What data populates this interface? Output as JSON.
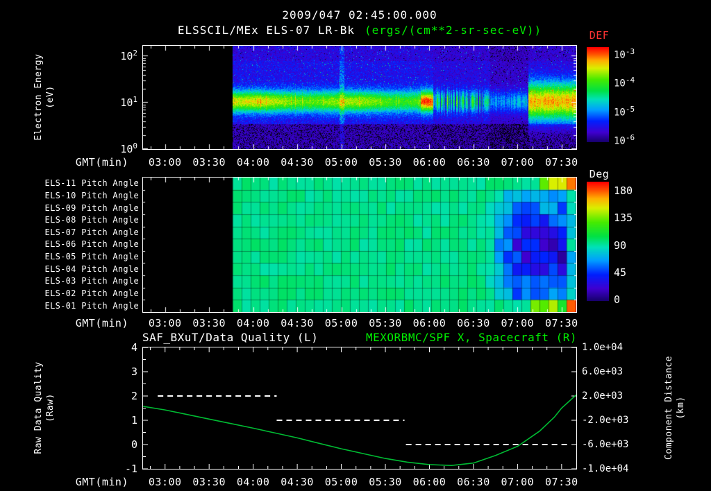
{
  "header": {
    "timestamp": "2009/047 02:45:00.000",
    "source": "ELSSCIL/MEx ELS-07 LR-Bk",
    "units": "(ergs/(cm**2-sr-sec-eV))"
  },
  "xaxis": {
    "label": "GMT(min)",
    "start": "02:45",
    "end": "07:40",
    "ticks": [
      "03:00",
      "03:30",
      "04:00",
      "04:30",
      "05:00",
      "05:30",
      "06:00",
      "06:30",
      "07:00",
      "07:30"
    ]
  },
  "spectrogram": {
    "ylabel": [
      "Electron Energy",
      "(eV)"
    ],
    "yticks": [
      "10^2",
      "10^1",
      "10^0"
    ],
    "colorbar_title": "DEF",
    "colorbar_ticks": [
      "10^-3",
      "10^-4",
      "10^-5",
      "10^-6"
    ]
  },
  "pitch": {
    "row_labels": [
      "ELS-11 Pitch Angle",
      "ELS-10 Pitch Angle",
      "ELS-09 Pitch Angle",
      "ELS-08 Pitch Angle",
      "ELS-07 Pitch Angle",
      "ELS-06 Pitch Angle",
      "ELS-05 Pitch Angle",
      "ELS-04 Pitch Angle",
      "ELS-03 Pitch Angle",
      "ELS-02 Pitch Angle",
      "ELS-01 Pitch Angle"
    ],
    "colorbar_title": "Deg",
    "colorbar_ticks": [
      "180",
      "135",
      "90",
      "45",
      "0"
    ]
  },
  "timeseries": {
    "title_left": "SAF_BXuT/Data Quality (L)",
    "title_right": "MEXORBMC/SPF X, Spacecraft (R)",
    "ylabel_left": [
      "Raw Data Quality",
      "(Raw)"
    ],
    "ylabel_right": [
      "Component Distance",
      "(km)"
    ],
    "yticks_left": [
      "4",
      "3",
      "2",
      "1",
      "0",
      "-1"
    ],
    "yticks_right": [
      "1.0e+04",
      "6.0e+03",
      "2.0e+03",
      "-2.0e+03",
      "-6.0e+03",
      "-1.0e+04"
    ]
  },
  "colors": {
    "text": "#ffffff",
    "green_text": "#00ee00",
    "red_text": "#ff3333",
    "spacecraft_line": "#00bb33",
    "quality_line": "#ffffff"
  },
  "chart_data": [
    {
      "type": "heatmap",
      "name": "electron-energy-spectrogram",
      "title": "ELSSCIL/MEx ELS-07 LR-Bk",
      "value_units": "ergs/(cm**2-sr-sec-eV)",
      "xlabel": "GMT(min)",
      "x_start": "02:45",
      "x_end": "07:40",
      "x_ticks": [
        "03:00",
        "03:30",
        "04:00",
        "04:30",
        "05:00",
        "05:30",
        "06:00",
        "06:30",
        "07:00",
        "07:30"
      ],
      "ylabel": "Electron Energy (eV)",
      "y_scale": "log",
      "y_ticks_ev": [
        1,
        10,
        100
      ],
      "y_max_ev": 165,
      "color_scale": {
        "label": "DEF",
        "min": 1e-06,
        "max": 0.001,
        "ticks": [
          0.001,
          0.0001,
          1e-05,
          1e-06
        ],
        "palette": "rainbow"
      },
      "data_start": "03:46",
      "features": [
        "no data (black) before 03:46",
        "intense band ~6-20 eV near 1e-4 (green, yellow flecks) across interval",
        "diffuse ~1e-5 blue background from 25 to 150 eV",
        "near-background violet/black below 4 eV",
        "bright burst near 06:00, dropouts and gaps 06:04-06:41",
        "dim patchy flux 06:41-07:07",
        "band broadens and brightens 07:07-07:40",
        "narrow high-energy cyan streak near 05:00"
      ]
    },
    {
      "type": "heatmap",
      "name": "pitch-angle-panels",
      "rows": [
        "ELS-11",
        "ELS-10",
        "ELS-09",
        "ELS-08",
        "ELS-07",
        "ELS-06",
        "ELS-05",
        "ELS-04",
        "ELS-03",
        "ELS-02",
        "ELS-01"
      ],
      "row_label_suffix": " Pitch Angle",
      "xlabel": "GMT(min)",
      "x_start": "02:45",
      "x_end": "07:40",
      "color_scale": {
        "label": "Deg",
        "min": 0,
        "max": 180,
        "ticks": [
          180,
          135,
          90,
          45,
          0
        ],
        "palette": "rainbow"
      },
      "data_start": "03:46",
      "dominant_value_deg": 90,
      "features": [
        "uniform ~90 deg (green) with dark cell grid from 03:46 to ~06:50 on all anodes",
        "pitch angles drop to ~30-60 deg (blue) ~06:55-07:35 on ELS-02 through ELS-10",
        "ELS-11 rises to ~135-180 deg (yellow to red) after ~07:15",
        "ELS-01 mixed 100-180 deg (yellow/orange/red) patches after ~07:00",
        "rightmost column returns to ~60-90 deg (cyan/green)"
      ]
    },
    {
      "type": "line",
      "name": "quality-and-spacecraft-position",
      "title_left": "SAF_BXuT/Data Quality (L)",
      "title_right": "MEXORBMC/SPF X, Spacecraft (R)",
      "xlabel": "GMT(min)",
      "ylabel_left": "Raw Data Quality (Raw)",
      "ylabel_right": "Component Distance (km)",
      "ylim_left": [
        -1,
        4
      ],
      "ylim_right": [
        -10000,
        10000
      ],
      "yticks_left": [
        4,
        3,
        2,
        1,
        0,
        -1
      ],
      "yticks_right": [
        10000,
        6000,
        2000,
        -2000,
        -6000,
        -10000
      ],
      "series": [
        {
          "name": "SAF_BXuT/Data Quality",
          "axis": "left",
          "style": "dashed",
          "color": "#ffffff",
          "steps": [
            {
              "value": 2,
              "from": "02:55",
              "to": "04:16"
            },
            {
              "value": 1,
              "from": "04:16",
              "to": "05:43"
            },
            {
              "value": 0,
              "from": "05:44",
              "to": "07:34"
            }
          ]
        },
        {
          "name": "MEXORBMC/SPF X Spacecraft",
          "axis": "right",
          "style": "solid",
          "color": "#00bb33",
          "points": [
            {
              "t": "02:45",
              "km": 300
            },
            {
              "t": "03:00",
              "km": -300
            },
            {
              "t": "03:15",
              "km": -1050
            },
            {
              "t": "03:30",
              "km": -1800
            },
            {
              "t": "03:45",
              "km": -2550
            },
            {
              "t": "04:00",
              "km": -3300
            },
            {
              "t": "04:15",
              "km": -4100
            },
            {
              "t": "04:30",
              "km": -4900
            },
            {
              "t": "04:45",
              "km": -5800
            },
            {
              "t": "05:00",
              "km": -6700
            },
            {
              "t": "05:15",
              "km": -7500
            },
            {
              "t": "05:30",
              "km": -8300
            },
            {
              "t": "05:45",
              "km": -8900
            },
            {
              "t": "06:00",
              "km": -9300
            },
            {
              "t": "06:15",
              "km": -9450
            },
            {
              "t": "06:30",
              "km": -9050
            },
            {
              "t": "06:45",
              "km": -7800
            },
            {
              "t": "07:00",
              "km": -6300
            },
            {
              "t": "07:15",
              "km": -3800
            },
            {
              "t": "07:25",
              "km": -1500
            },
            {
              "t": "07:30",
              "km": 0
            },
            {
              "t": "07:35",
              "km": 1100
            },
            {
              "t": "07:40",
              "km": 2200
            }
          ]
        }
      ]
    }
  ]
}
